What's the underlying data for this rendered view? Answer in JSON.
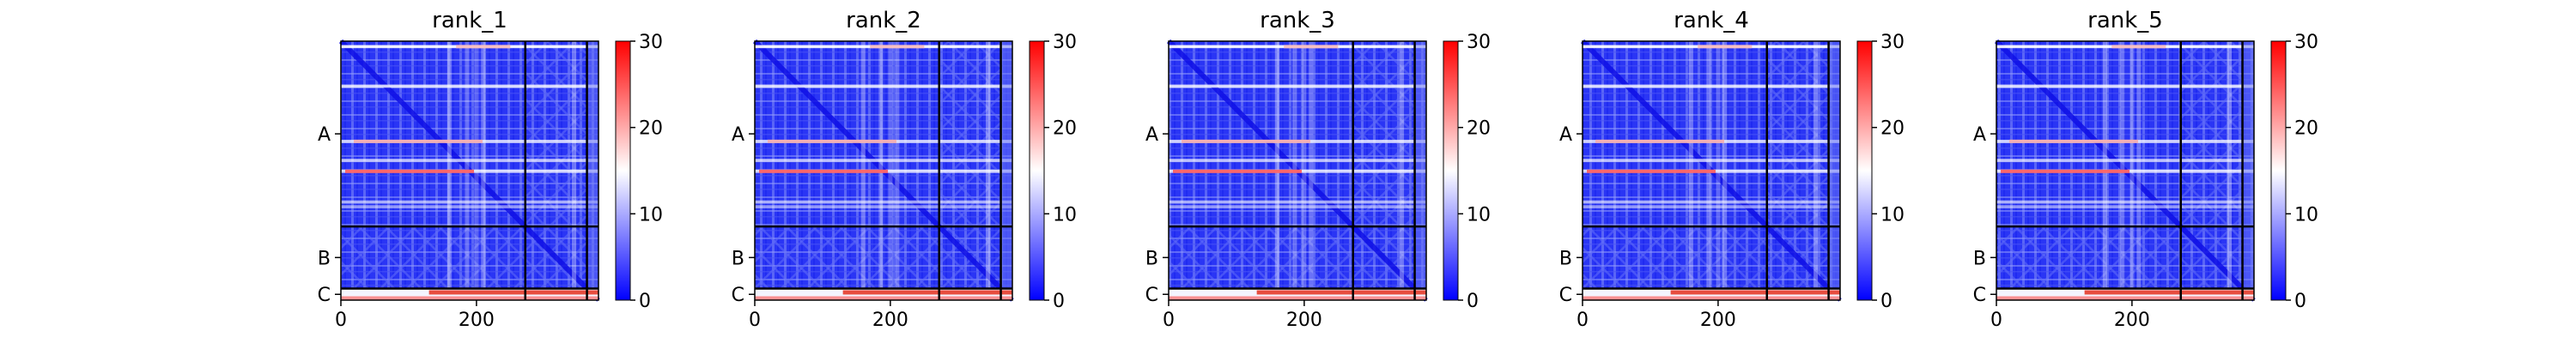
{
  "figure": {
    "description_free": true
  },
  "colors": {
    "low": "#0000ff",
    "mid": "#ffffff",
    "high": "#ff0000",
    "frame": "#000000"
  },
  "chart_data": [
    {
      "type": "heatmap",
      "title": "rank_1",
      "chain_labels": [
        "A",
        "B",
        "C"
      ],
      "chain_boundaries": [
        0,
        272,
        363,
        380
      ],
      "xticks": [
        0,
        200
      ],
      "xlim": [
        0,
        380
      ],
      "ylim": [
        380,
        0
      ],
      "colorbar": {
        "range": [
          0,
          30
        ],
        "ticks": [
          "0",
          "10",
          "20",
          "30"
        ]
      }
    },
    {
      "type": "heatmap",
      "title": "rank_2",
      "chain_labels": [
        "A",
        "B",
        "C"
      ],
      "chain_boundaries": [
        0,
        272,
        363,
        380
      ],
      "xticks": [
        0,
        200
      ],
      "xlim": [
        0,
        380
      ],
      "ylim": [
        380,
        0
      ],
      "colorbar": {
        "range": [
          0,
          30
        ],
        "ticks": [
          "0",
          "10",
          "20",
          "30"
        ]
      }
    },
    {
      "type": "heatmap",
      "title": "rank_3",
      "chain_labels": [
        "A",
        "B",
        "C"
      ],
      "chain_boundaries": [
        0,
        272,
        363,
        380
      ],
      "xticks": [
        0,
        200
      ],
      "xlim": [
        0,
        380
      ],
      "ylim": [
        380,
        0
      ],
      "colorbar": {
        "range": [
          0,
          30
        ],
        "ticks": [
          "0",
          "10",
          "20",
          "30"
        ]
      }
    },
    {
      "type": "heatmap",
      "title": "rank_4",
      "chain_labels": [
        "A",
        "B",
        "C"
      ],
      "chain_boundaries": [
        0,
        272,
        363,
        380
      ],
      "xticks": [
        0,
        200
      ],
      "xlim": [
        0,
        380
      ],
      "ylim": [
        380,
        0
      ],
      "colorbar": {
        "range": [
          0,
          30
        ],
        "ticks": [
          "0",
          "10",
          "20",
          "30"
        ]
      }
    },
    {
      "type": "heatmap",
      "title": "rank_5",
      "chain_labels": [
        "A",
        "B",
        "C"
      ],
      "chain_boundaries": [
        0,
        272,
        363,
        380
      ],
      "xticks": [
        0,
        200
      ],
      "xlim": [
        0,
        380
      ],
      "ylim": [
        380,
        0
      ],
      "colorbar": {
        "range": [
          0,
          30
        ],
        "ticks": [
          "0",
          "10",
          "20",
          "30"
        ]
      }
    }
  ]
}
